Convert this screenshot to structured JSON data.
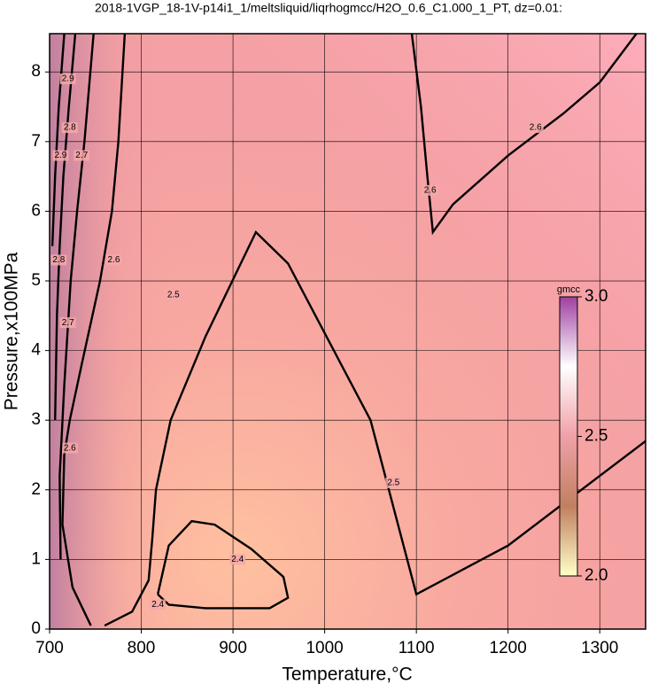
{
  "chart_data": {
    "type": "contour",
    "title": "2018-1VGP_18-1V-p14i1_1/meltsliquid/liqrhogmcc/H2O_0.6_C1.000_1_PT, dz=0.01:",
    "x_label": "Temperature,°C",
    "y_label": "Pressure,x100MPa",
    "xlim": [
      700,
      1350
    ],
    "ylim": [
      0,
      8.55
    ],
    "xticks": [
      700,
      800,
      900,
      1000,
      1100,
      1200,
      1300
    ],
    "yticks": [
      0,
      1,
      2,
      3,
      4,
      5,
      6,
      7,
      8
    ],
    "grid": true,
    "line_color": "#000000",
    "colorbar": {
      "label": "gmcc",
      "clim": [
        2.0,
        3.0
      ],
      "ticks": [
        {
          "value": 2.0,
          "label": "2.0"
        },
        {
          "value": 2.5,
          "label": "2.5"
        },
        {
          "value": 3.0,
          "label": "3.0"
        }
      ],
      "colors": [
        "#ffffc8",
        "#c08060",
        "#f0a0a8",
        "#ffffff",
        "#a040a0"
      ]
    },
    "contours": [
      {
        "level": 2.4,
        "x": [
          818,
          830,
          855,
          880,
          920,
          955,
          960,
          940,
          870,
          830,
          818
        ],
        "y": [
          0.5,
          1.2,
          1.55,
          1.5,
          1.15,
          0.75,
          0.45,
          0.3,
          0.3,
          0.35,
          0.5
        ],
        "label_x": [
          905,
          818
        ],
        "label_y": [
          1.0,
          0.35
        ]
      },
      {
        "level": 2.5,
        "x": [
          760,
          790,
          808,
          812,
          816,
          832,
          870,
          925,
          960,
          1010,
          1050,
          1070,
          1090,
          1100,
          1150,
          1200,
          1300,
          1350
        ],
        "y": [
          0.05,
          0.25,
          0.7,
          1.3,
          2.0,
          3.0,
          4.2,
          5.7,
          5.25,
          4.0,
          3.0,
          2.0,
          1.0,
          0.5,
          0.85,
          1.2,
          2.2,
          2.7
        ],
        "label_x": [
          1075,
          835
        ],
        "label_y": [
          2.1,
          4.8
        ]
      },
      {
        "level": 2.6,
        "x": [
          745,
          725,
          714,
          716,
          722,
          735,
          755,
          768,
          775,
          782
        ],
        "y": [
          0.05,
          0.6,
          1.5,
          2.5,
          3.0,
          3.8,
          5.0,
          6.0,
          7.0,
          8.55
        ],
        "label_x": [
          722,
          770
        ],
        "label_y": [
          2.6,
          5.3
        ]
      },
      {
        "level": 2.6,
        "x": [
          1095,
          1105,
          1112,
          1118,
          1140,
          1200,
          1260,
          1300,
          1340
        ],
        "y": [
          8.55,
          7.5,
          6.5,
          5.7,
          6.1,
          6.8,
          7.4,
          7.85,
          8.55
        ],
        "label_x": [
          1115,
          1230
        ],
        "label_y": [
          6.3,
          7.2
        ]
      },
      {
        "level": 2.7,
        "x": [
          712,
          711,
          716,
          723,
          730,
          738,
          748
        ],
        "y": [
          1.0,
          2.2,
          3.5,
          5.0,
          6.0,
          7.0,
          8.55
        ],
        "label_x": [
          720,
          735
        ],
        "label_y": [
          4.4,
          6.8
        ]
      },
      {
        "level": 2.8,
        "x": [
          706,
          708,
          711,
          715,
          721,
          728
        ],
        "y": [
          3.0,
          4.5,
          5.5,
          6.5,
          7.5,
          8.55
        ],
        "label_x": [
          710,
          722
        ],
        "label_y": [
          5.3,
          7.2
        ]
      },
      {
        "level": 2.9,
        "x": [
          703,
          706,
          710,
          716
        ],
        "y": [
          5.5,
          6.5,
          7.5,
          8.55
        ],
        "label_x": [
          712,
          720
        ],
        "label_y": [
          6.8,
          7.9
        ]
      }
    ]
  }
}
